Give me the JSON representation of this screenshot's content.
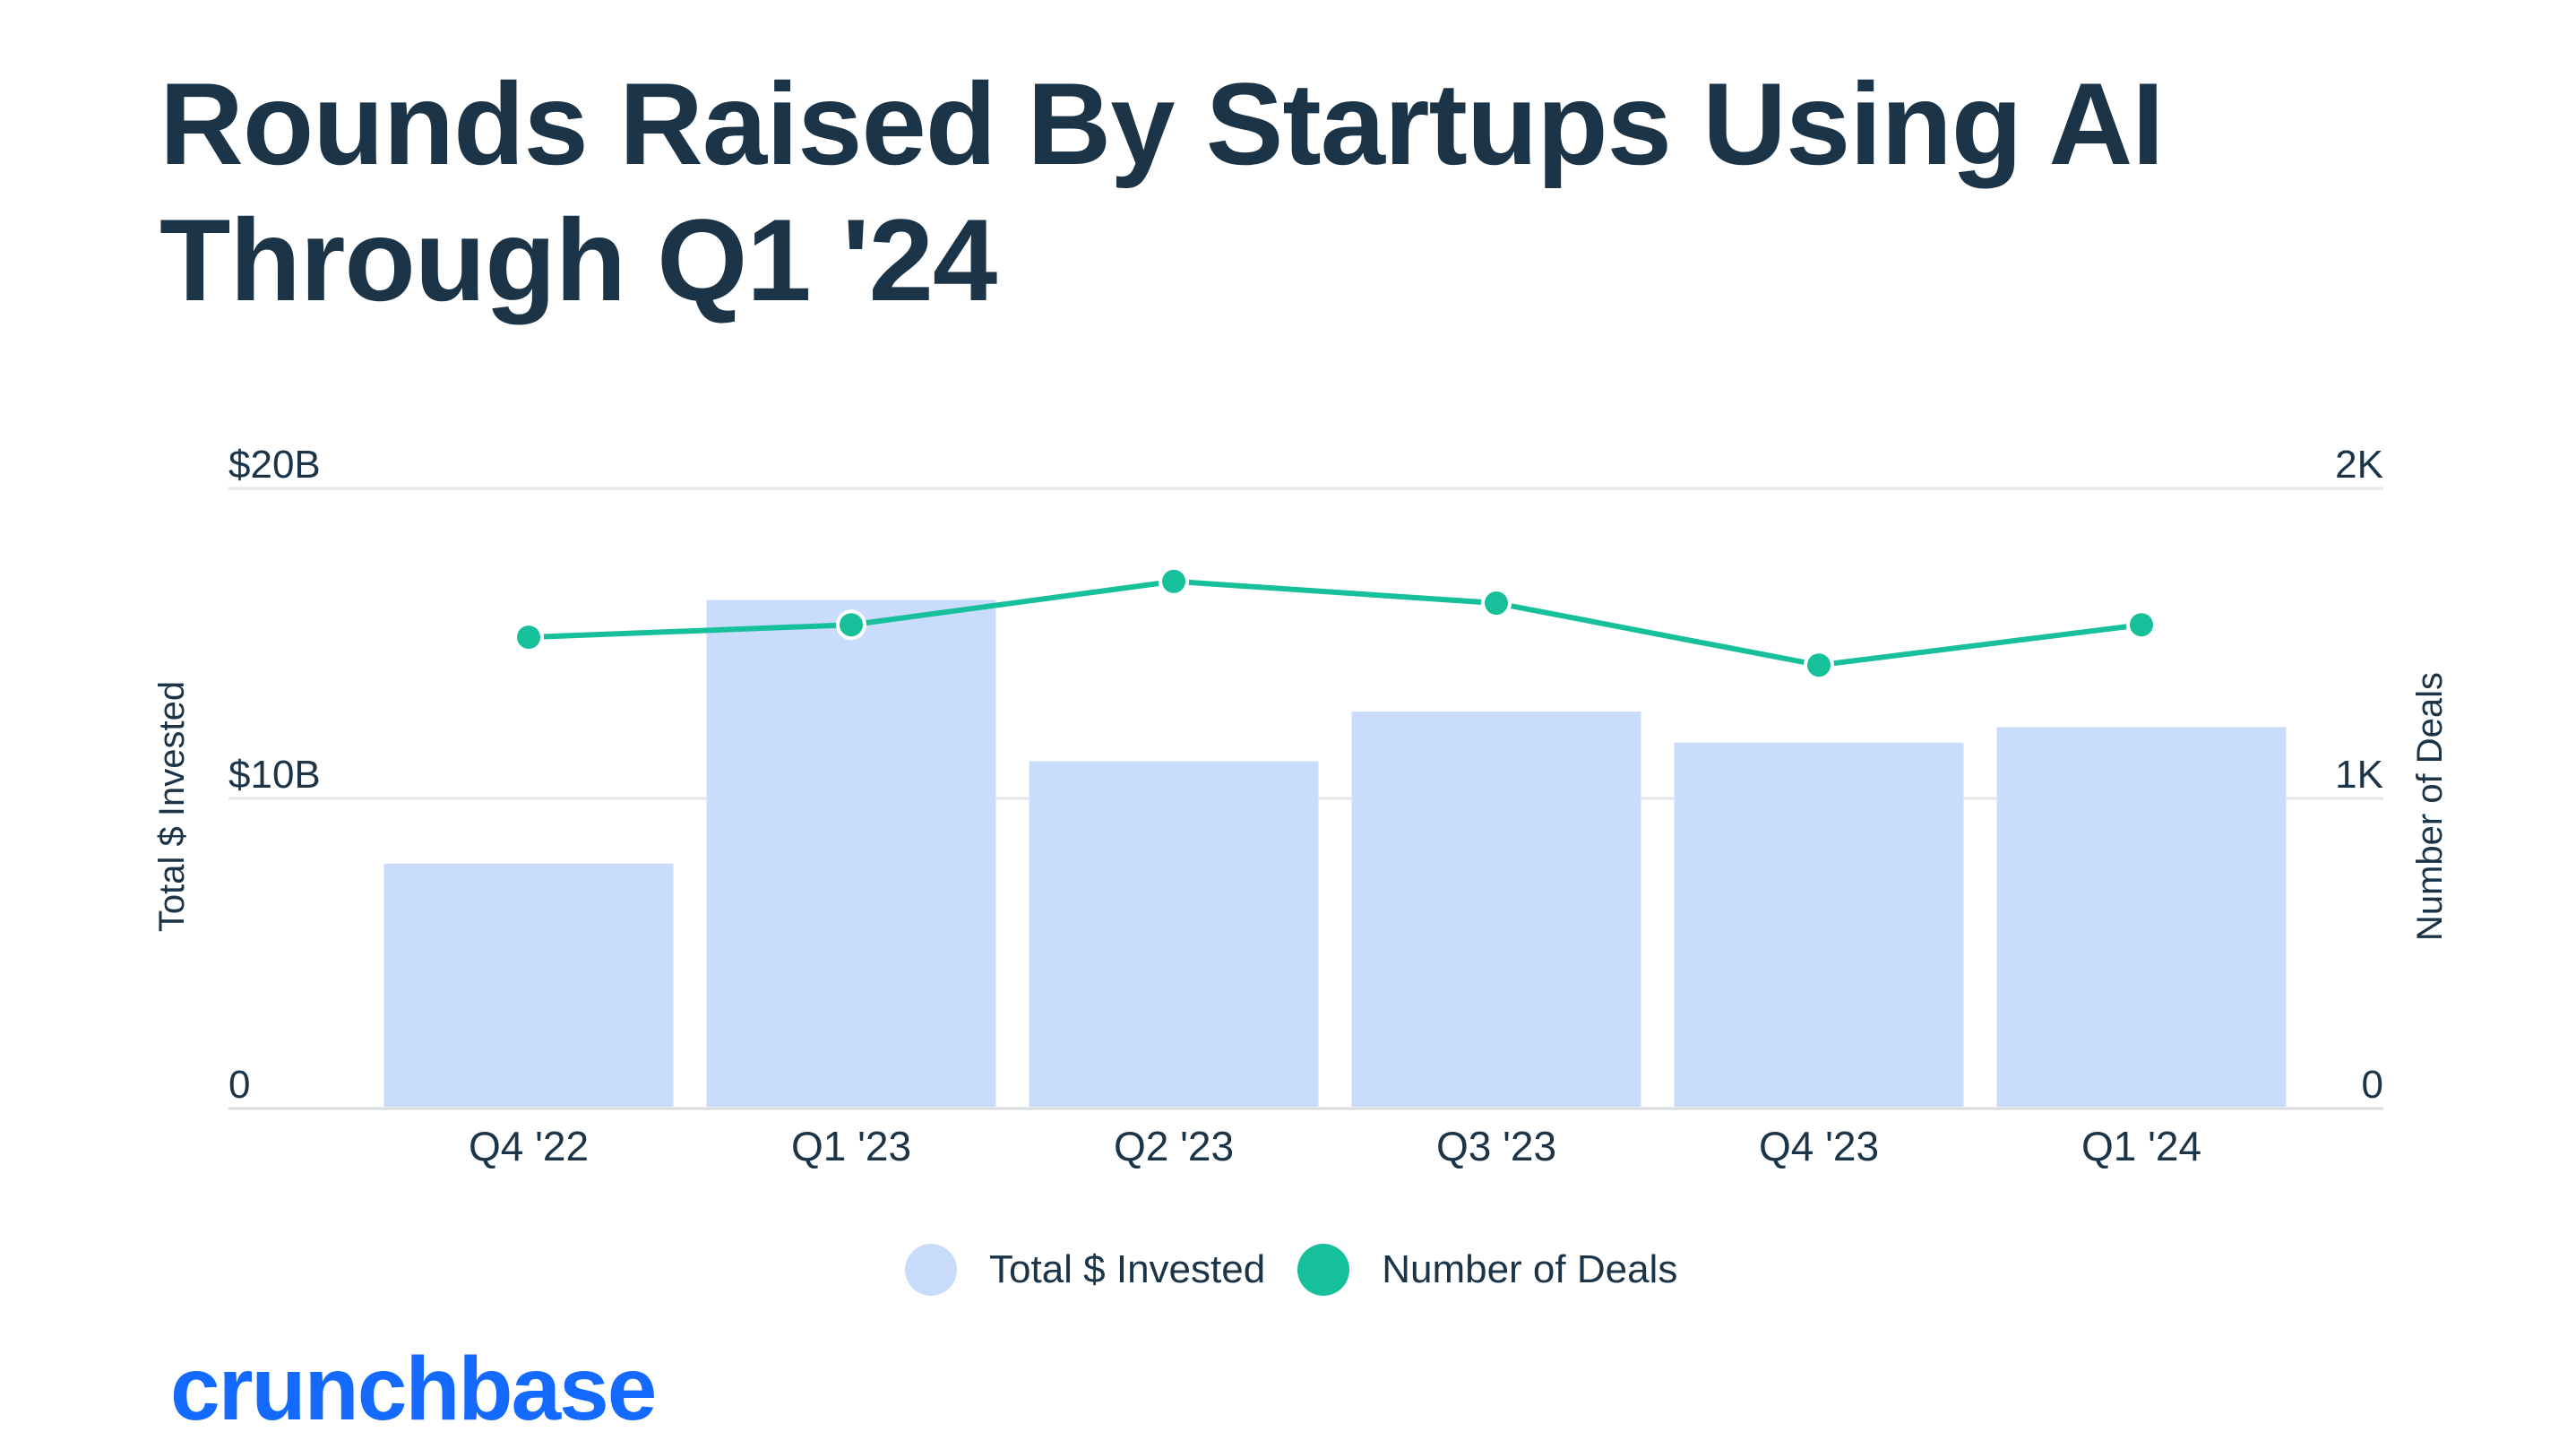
{
  "title": "Rounds Raised By Startups Using AI Through Q1 '24",
  "logo": "crunchbase",
  "colors": {
    "bar": "#cadcfb",
    "line": "#16c09a",
    "text": "#1b3447",
    "grid": "#e4e6e9",
    "logo": "#146aff"
  },
  "chart_data": {
    "type": "bar",
    "categories": [
      "Q4 '22",
      "Q1 '23",
      "Q2 '23",
      "Q3 '23",
      "Q4 '23",
      "Q1 '24"
    ],
    "series": [
      {
        "name": "Total $ Invested",
        "type": "bar",
        "axis": "left",
        "values": [
          7.9,
          16.4,
          11.2,
          12.8,
          11.8,
          12.3
        ]
      },
      {
        "name": "Number of Deals",
        "type": "line",
        "axis": "right",
        "values": [
          1520,
          1560,
          1700,
          1630,
          1430,
          1560
        ]
      }
    ],
    "ylabel": "Total $ Invested",
    "y2label": "Number of Deals",
    "ylim": [
      0,
      20
    ],
    "y2lim": [
      0,
      2000
    ],
    "yticks": [
      {
        "value": 0,
        "label": "0"
      },
      {
        "value": 10,
        "label": "$10B"
      },
      {
        "value": 20,
        "label": "$20B"
      }
    ],
    "y2ticks": [
      {
        "value": 0,
        "label": "0"
      },
      {
        "value": 1000,
        "label": "1K"
      },
      {
        "value": 2000,
        "label": "2K"
      }
    ],
    "grid": true,
    "legend_position": "bottom-center"
  }
}
